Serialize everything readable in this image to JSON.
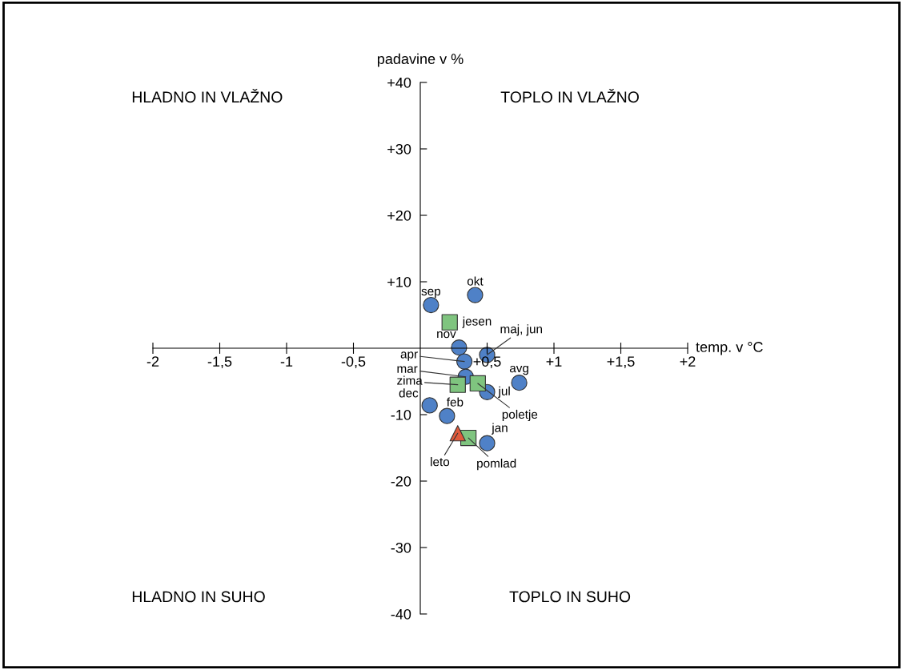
{
  "chart_data": {
    "type": "scatter",
    "xlabel": "temp. v °C",
    "ylabel": "padavine v %",
    "xlim": [
      -2,
      2
    ],
    "ylim": [
      -40,
      40
    ],
    "xticks": [
      {
        "value": -2,
        "label": "-2"
      },
      {
        "value": -1.5,
        "label": "-1,5"
      },
      {
        "value": -1,
        "label": "-1"
      },
      {
        "value": -0.5,
        "label": "-0,5"
      },
      {
        "value": 0.5,
        "label": "+0,5"
      },
      {
        "value": 1,
        "label": "+1"
      },
      {
        "value": 1.5,
        "label": "+1,5"
      },
      {
        "value": 2,
        "label": "+2"
      }
    ],
    "yticks": [
      {
        "value": -40,
        "label": "-40"
      },
      {
        "value": -30,
        "label": "-30"
      },
      {
        "value": -20,
        "label": "-20"
      },
      {
        "value": -10,
        "label": "-10"
      },
      {
        "value": 10,
        "label": "+10"
      },
      {
        "value": 20,
        "label": "+20"
      },
      {
        "value": 30,
        "label": "+30"
      },
      {
        "value": 40,
        "label": "+40"
      }
    ],
    "grid": false,
    "legend": false,
    "series": [
      {
        "color": "#4f81c7",
        "marker": "circle",
        "x": [
          0.08,
          0.41,
          0.29,
          0.5,
          0.33,
          0.34,
          0.5,
          0.74,
          0.07,
          0.2,
          0.5
        ],
        "values": [
          6.5,
          8.0,
          0.1,
          -1.0,
          -2.0,
          -4.3,
          -6.6,
          -5.2,
          -8.6,
          -10.2,
          -14.3
        ]
      },
      {
        "color": "#7fc47f",
        "marker": "square",
        "x": [
          0.22,
          0.28,
          0.43,
          0.36
        ],
        "values": [
          3.9,
          -5.5,
          -5.3,
          -13.5
        ]
      },
      {
        "color": "#e05a3c",
        "marker": "triangle",
        "x": [
          0.28
        ],
        "values": [
          -12.8
        ]
      }
    ],
    "annotations": [
      "HLADNO IN VLAŽNO",
      "TOPLO IN VLAŽNO",
      "HLADNO IN SUHO",
      "TOPLO IN SUHO",
      {
        "text": "sep",
        "x": 0.08,
        "y": 6.5
      },
      {
        "text": "okt",
        "x": 0.41,
        "y": 8.0
      },
      {
        "text": "jesen",
        "x": 0.22,
        "y": 3.9
      },
      {
        "text": "nov",
        "x": 0.29,
        "y": 0.1
      },
      {
        "text": "maj, jun",
        "x": 0.5,
        "y": -1.0
      },
      {
        "text": "apr",
        "x": 0.33,
        "y": -2.0
      },
      {
        "text": "mar",
        "x": 0.34,
        "y": -4.3
      },
      {
        "text": "zima",
        "x": 0.28,
        "y": -5.5
      },
      {
        "text": "avg",
        "x": 0.74,
        "y": -5.2
      },
      {
        "text": "jul",
        "x": 0.5,
        "y": -6.6
      },
      {
        "text": "poletje",
        "x": 0.43,
        "y": -5.3
      },
      {
        "text": "dec",
        "x": 0.07,
        "y": -8.6
      },
      {
        "text": "feb",
        "x": 0.2,
        "y": -10.2
      },
      {
        "text": "jan",
        "x": 0.5,
        "y": -14.3
      },
      {
        "text": "leto",
        "x": 0.28,
        "y": -12.8
      },
      {
        "text": "pomlad",
        "x": 0.36,
        "y": -13.5
      }
    ]
  }
}
